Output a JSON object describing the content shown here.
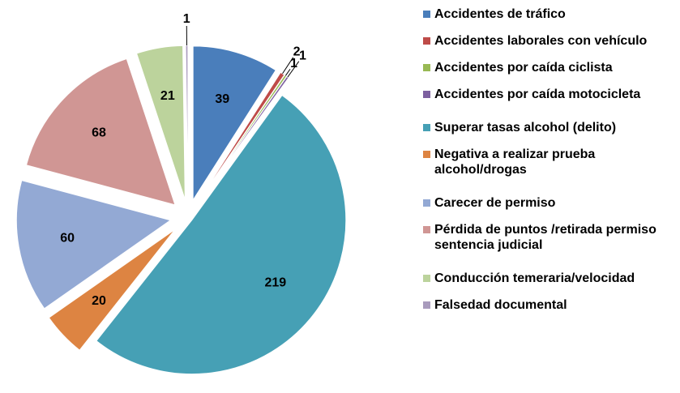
{
  "chart_data": {
    "type": "pie",
    "categories": [
      "Accidentes de tráfico",
      "Accidentes laborales con vehículo",
      "Accidentes por caída ciclista",
      "Accidentes por caída motocicleta",
      "Superar tasas alcohol (delito)",
      "Negativa a realizar prueba alcohol/drogas",
      "Carecer de permiso",
      "Pérdida de puntos /retirada permiso sentencia judicial",
      "Conducción temeraria/velocidad",
      "Falsedad documental"
    ],
    "values": [
      39,
      2,
      1,
      1,
      219,
      20,
      60,
      68,
      21,
      1
    ],
    "colors": [
      "#4a7ebb",
      "#be4b48",
      "#98b954",
      "#7d60a0",
      "#46a0b5",
      "#dd8442",
      "#93a9d4",
      "#d09694",
      "#bcd39c",
      "#a99bbd"
    ],
    "legend": "right"
  }
}
